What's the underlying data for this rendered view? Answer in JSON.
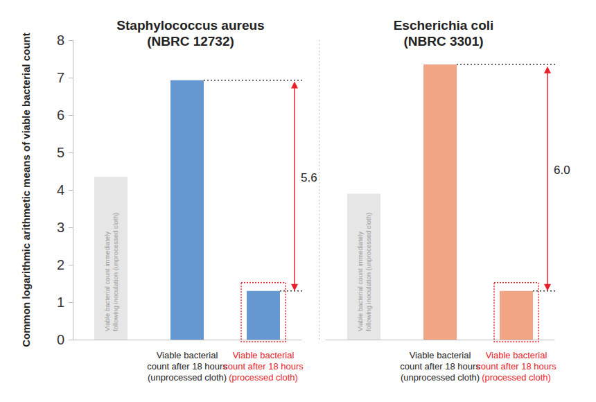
{
  "chart_data": [
    {
      "type": "bar",
      "title": "Staphylococcus aureus (NBRC 12732)",
      "ylabel": "Common logarithmic arithmetic means of viable bacterial count",
      "categories": [
        "Viable bacterial count immediately following inoculation (unprocessed cloth)",
        "Viable bacterial count after 18 hours (unprocessed cloth)",
        "Viable bacterial count after 18 hours (processed cloth)"
      ],
      "values": [
        4.35,
        6.93,
        1.3
      ],
      "colors": [
        "#e6e6e6",
        "#6597d0",
        "#6597d0"
      ],
      "ylim": [
        0,
        8
      ],
      "yticks": [
        0,
        1,
        2,
        3,
        4,
        5,
        6,
        7,
        8
      ],
      "grid": false,
      "annotation": {
        "value": 5.6,
        "label": "5.6"
      }
    },
    {
      "type": "bar",
      "title": "Escherichia coli (NBRC 3301)",
      "categories": [
        "Viable bacterial count immediately following inoculation (unprocessed cloth)",
        "Viable bacterial count after 18 hours (unprocessed cloth)",
        "Viable bacterial count after 18 hours (processed cloth)"
      ],
      "values": [
        3.9,
        7.35,
        1.3
      ],
      "colors": [
        "#e6e6e6",
        "#f2a585",
        "#f2a585"
      ],
      "ylim": [
        0,
        8
      ],
      "yticks": [
        0,
        1,
        2,
        3,
        4,
        5,
        6,
        7,
        8
      ],
      "grid": false,
      "tick_labels": "x",
      "annotation": {
        "value": 6.0,
        "label": "6.0"
      }
    }
  ]
}
